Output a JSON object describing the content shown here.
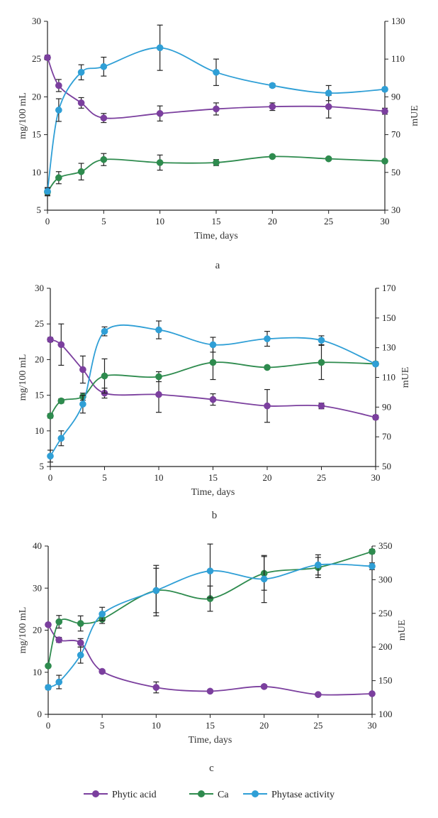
{
  "legend": [
    {
      "name": "Phytic acid",
      "color": "#7b3f9e"
    },
    {
      "name": "Ca",
      "color": "#2e8b4e"
    },
    {
      "name": "Phytase activity",
      "color": "#2f9fd6"
    }
  ],
  "chart_data": [
    {
      "type": "line",
      "panel_label": "a",
      "xlabel": "Time, days",
      "ylabel_left": "mg/100 mL",
      "ylabel_right": "mUE",
      "x_ticks": [
        0,
        5,
        10,
        15,
        20,
        25,
        30
      ],
      "x_tick_labels": [
        "0",
        "5",
        "10",
        "15",
        "20",
        "25",
        "30"
      ],
      "xlim": [
        0,
        30
      ],
      "ylim_left": [
        5,
        30
      ],
      "y_left_ticks": [
        5,
        10,
        15,
        20,
        25,
        30
      ],
      "y_left_tick_labels": [
        "5",
        "10",
        "15",
        "20",
        "25",
        "30"
      ],
      "ylim_right": [
        30,
        130
      ],
      "y_right_ticks": [
        30,
        50,
        70,
        90,
        110,
        130
      ],
      "y_right_tick_labels": [
        "30",
        "50",
        "70",
        "90",
        "110",
        "130"
      ],
      "x": [
        0,
        1,
        3,
        5,
        10,
        15,
        20,
        25,
        30
      ],
      "series": [
        {
          "name": "Phytic acid",
          "axis": "left",
          "values": [
            25.2,
            21.5,
            19.2,
            17.2,
            17.8,
            18.4,
            18.7,
            18.7,
            18.1
          ],
          "errors": [
            0.3,
            0.8,
            0.7,
            0.6,
            1.0,
            0.8,
            0.5,
            1.5,
            0.4
          ]
        },
        {
          "name": "Ca",
          "axis": "left",
          "values": [
            7.4,
            9.3,
            10.1,
            11.7,
            11.3,
            11.3,
            12.1,
            11.8,
            11.5
          ],
          "errors": [
            0.5,
            0.8,
            1.1,
            0.8,
            1.0,
            0.4,
            0.2,
            0.2,
            0.2
          ]
        },
        {
          "name": "Phytase activity",
          "axis": "right",
          "values": [
            40,
            83,
            103,
            106,
            116,
            103,
            96,
            92,
            94
          ],
          "errors": [
            2,
            6,
            4,
            5,
            12,
            7,
            1,
            4,
            1
          ]
        }
      ]
    },
    {
      "type": "line",
      "panel_label": "b",
      "xlabel": "Time, days",
      "ylabel_left": "mg/100 mL",
      "ylabel_right": "mUE",
      "x_ticks": [
        0,
        5,
        10,
        15,
        20,
        25,
        30
      ],
      "x_tick_labels": [
        "0",
        "5",
        "10",
        "15",
        "20",
        "25",
        "30"
      ],
      "xlim": [
        0,
        30
      ],
      "ylim_left": [
        5,
        30
      ],
      "y_left_ticks": [
        5,
        10,
        15,
        20,
        25,
        30
      ],
      "y_left_tick_labels": [
        "5",
        "10",
        "15",
        "20",
        "25",
        "30"
      ],
      "ylim_right": [
        50,
        170
      ],
      "y_right_ticks": [
        50,
        70,
        90,
        110,
        130,
        150,
        170
      ],
      "y_right_tick_labels": [
        "50",
        "70",
        "90",
        "110",
        "130",
        "150",
        "170"
      ],
      "x": [
        0,
        1,
        3,
        5,
        10,
        15,
        20,
        25,
        30
      ],
      "series": [
        {
          "name": "Phytic acid",
          "axis": "left",
          "values": [
            22.8,
            22.1,
            18.6,
            15.3,
            15.1,
            14.4,
            13.5,
            13.5,
            11.9
          ],
          "errors": [
            0.3,
            2.9,
            1.9,
            0.7,
            2.5,
            0.8,
            2.3,
            0.4,
            0.3
          ]
        },
        {
          "name": "Ca",
          "axis": "left",
          "values": [
            12.1,
            14.2,
            14.8,
            17.7,
            17.6,
            19.6,
            18.9,
            19.6,
            19.4
          ],
          "errors": [
            0.3,
            0.3,
            0.5,
            2.4,
            0.7,
            2.4,
            0.2,
            2.4,
            0.3
          ]
        },
        {
          "name": "Phytase activity",
          "axis": "right",
          "values": [
            57,
            69,
            92,
            141,
            142,
            132,
            136,
            135,
            119
          ],
          "errors": [
            4,
            5,
            6,
            3,
            6,
            5,
            5,
            3,
            1
          ]
        }
      ]
    },
    {
      "type": "line",
      "panel_label": "c",
      "xlabel": "Time, days",
      "ylabel_left": "mg/100 mL",
      "ylabel_right": "mUE",
      "x_ticks": [
        0,
        5,
        10,
        15,
        20,
        25,
        30
      ],
      "x_tick_labels": [
        "0",
        "5",
        "10",
        "15",
        "20",
        "25",
        "30"
      ],
      "xlim": [
        0,
        30
      ],
      "ylim_left": [
        0,
        40
      ],
      "y_left_ticks": [
        0,
        10,
        20,
        30,
        40
      ],
      "y_left_tick_labels": [
        "0",
        "10",
        "20",
        "30",
        "40"
      ],
      "ylim_right": [
        100,
        350
      ],
      "y_right_ticks": [
        100,
        150,
        200,
        250,
        300,
        350
      ],
      "y_right_tick_labels": [
        "100",
        "150",
        "200",
        "250",
        "300",
        "350"
      ],
      "x": [
        0,
        1,
        3,
        5,
        10,
        15,
        20,
        25,
        30
      ],
      "series": [
        {
          "name": "Phytic acid",
          "axis": "left",
          "values": [
            21.3,
            17.7,
            17.0,
            10.2,
            6.4,
            5.5,
            6.6,
            4.7,
            4.9
          ],
          "errors": [
            0.4,
            0.6,
            1.0,
            0.4,
            1.3,
            0.3,
            0.4,
            0.3,
            0.3
          ]
        },
        {
          "name": "Ca",
          "axis": "left",
          "values": [
            11.5,
            22.0,
            21.6,
            22.6,
            29.4,
            27.5,
            33.5,
            34.9,
            38.7
          ],
          "errors": [
            0.3,
            1.5,
            1.8,
            1.0,
            6.0,
            3.0,
            4.0,
            2.4,
            0.5
          ]
        },
        {
          "name": "Phytase activity",
          "axis": "right",
          "values": [
            140,
            148,
            188,
            249,
            284,
            313,
            301,
            322,
            320
          ],
          "errors": [
            3,
            10,
            12,
            10,
            33,
            40,
            35,
            15,
            5
          ]
        }
      ]
    }
  ]
}
